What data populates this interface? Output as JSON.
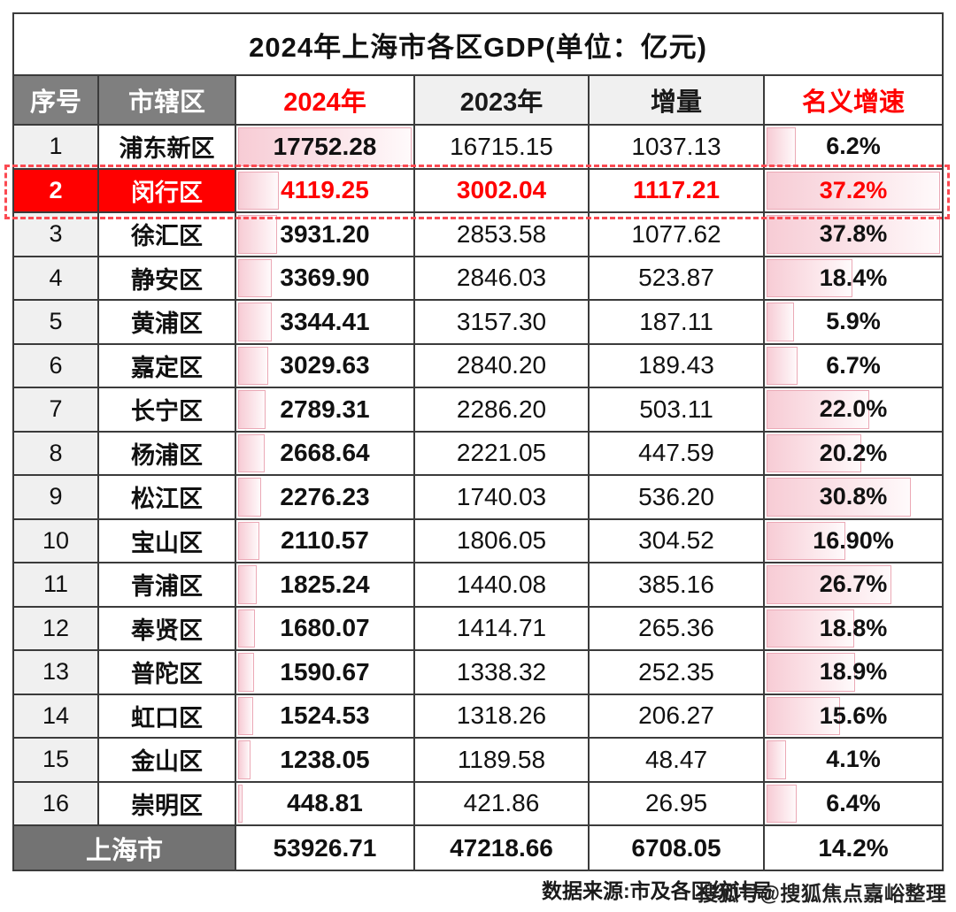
{
  "title": "2024年上海市各区GDP(单位：亿元)",
  "table": {
    "headers": [
      "序号",
      "市辖区",
      "2024年",
      "2023年",
      "增量",
      "名义增速"
    ],
    "rows": [
      {
        "no": "1",
        "district": "浦东新区",
        "gdp2024": "17752.28",
        "gdp2023": "16715.15",
        "delta": "1037.13",
        "growth": "6.2%",
        "highlight": false
      },
      {
        "no": "2",
        "district": "闵行区",
        "gdp2024": "4119.25",
        "gdp2023": "3002.04",
        "delta": "1117.21",
        "growth": "37.2%",
        "highlight": true
      },
      {
        "no": "3",
        "district": "徐汇区",
        "gdp2024": "3931.20",
        "gdp2023": "2853.58",
        "delta": "1077.62",
        "growth": "37.8%",
        "highlight": false
      },
      {
        "no": "4",
        "district": "静安区",
        "gdp2024": "3369.90",
        "gdp2023": "2846.03",
        "delta": "523.87",
        "growth": "18.4%",
        "highlight": false
      },
      {
        "no": "5",
        "district": "黄浦区",
        "gdp2024": "3344.41",
        "gdp2023": "3157.30",
        "delta": "187.11",
        "growth": "5.9%",
        "highlight": false
      },
      {
        "no": "6",
        "district": "嘉定区",
        "gdp2024": "3029.63",
        "gdp2023": "2840.20",
        "delta": "189.43",
        "growth": "6.7%",
        "highlight": false
      },
      {
        "no": "7",
        "district": "长宁区",
        "gdp2024": "2789.31",
        "gdp2023": "2286.20",
        "delta": "503.11",
        "growth": "22.0%",
        "highlight": false
      },
      {
        "no": "8",
        "district": "杨浦区",
        "gdp2024": "2668.64",
        "gdp2023": "2221.05",
        "delta": "447.59",
        "growth": "20.2%",
        "highlight": false
      },
      {
        "no": "9",
        "district": "松江区",
        "gdp2024": "2276.23",
        "gdp2023": "1740.03",
        "delta": "536.20",
        "growth": "30.8%",
        "highlight": false
      },
      {
        "no": "10",
        "district": "宝山区",
        "gdp2024": "2110.57",
        "gdp2023": "1806.05",
        "delta": "304.52",
        "growth": "16.90%",
        "highlight": false
      },
      {
        "no": "11",
        "district": "青浦区",
        "gdp2024": "1825.24",
        "gdp2023": "1440.08",
        "delta": "385.16",
        "growth": "26.7%",
        "highlight": false
      },
      {
        "no": "12",
        "district": "奉贤区",
        "gdp2024": "1680.07",
        "gdp2023": "1414.71",
        "delta": "265.36",
        "growth": "18.8%",
        "highlight": false
      },
      {
        "no": "13",
        "district": "普陀区",
        "gdp2024": "1590.67",
        "gdp2023": "1338.32",
        "delta": "252.35",
        "growth": "18.9%",
        "highlight": false
      },
      {
        "no": "14",
        "district": "虹口区",
        "gdp2024": "1524.53",
        "gdp2023": "1318.26",
        "delta": "206.27",
        "growth": "15.6%",
        "highlight": false
      },
      {
        "no": "15",
        "district": "金山区",
        "gdp2024": "1238.05",
        "gdp2023": "1189.58",
        "delta": "48.47",
        "growth": "4.1%",
        "highlight": false
      },
      {
        "no": "16",
        "district": "崇明区",
        "gdp2024": "448.81",
        "gdp2023": "421.86",
        "delta": "26.95",
        "growth": "6.4%",
        "highlight": false
      }
    ],
    "footer": {
      "label": "上海市",
      "gdp2024": "53926.71",
      "gdp2023": "47218.66",
      "delta": "6708.05",
      "growth": "14.2%"
    }
  },
  "caption": {
    "source": "数据来源:市及各区统计局",
    "watermark": "搜狐号@搜狐焦点嘉峪整理"
  },
  "colors": {
    "accent_red": "#ff0000",
    "header_gray": "#7f7f7f",
    "footer_gray": "#737373",
    "rank_column_gray": "#f0f0f0",
    "bar_fill": "#f7ccd5",
    "bar_border": "#eba9b6",
    "dashed_highlight": "#fb4a52",
    "grid_border": "#3b3b3b"
  },
  "chart_data": {
    "type": "table",
    "title": "2024年上海市各区GDP(单位：亿元)",
    "columns": [
      "序号",
      "市辖区",
      "2024年",
      "2023年",
      "增量",
      "名义增速"
    ],
    "categories": [
      "浦东新区",
      "闵行区",
      "徐汇区",
      "静安区",
      "黄浦区",
      "嘉定区",
      "长宁区",
      "杨浦区",
      "松江区",
      "宝山区",
      "青浦区",
      "奉贤区",
      "普陀区",
      "虹口区",
      "金山区",
      "崇明区"
    ],
    "series": [
      {
        "name": "2024年",
        "values": [
          17752.28,
          4119.25,
          3931.2,
          3369.9,
          3344.41,
          3029.63,
          2789.31,
          2668.64,
          2276.23,
          2110.57,
          1825.24,
          1680.07,
          1590.67,
          1524.53,
          1238.05,
          448.81
        ]
      },
      {
        "name": "2023年",
        "values": [
          16715.15,
          3002.04,
          2853.58,
          2846.03,
          3157.3,
          2840.2,
          2286.2,
          2221.05,
          1740.03,
          1806.05,
          1440.08,
          1414.71,
          1338.32,
          1318.26,
          1189.58,
          421.86
        ]
      },
      {
        "name": "增量",
        "values": [
          1037.13,
          1117.21,
          1077.62,
          523.87,
          187.11,
          189.43,
          503.11,
          447.59,
          536.2,
          304.52,
          385.16,
          265.36,
          252.35,
          206.27,
          48.47,
          26.95
        ]
      },
      {
        "name": "名义增速%",
        "values": [
          6.2,
          37.2,
          37.8,
          18.4,
          5.9,
          6.7,
          22.0,
          20.2,
          30.8,
          16.9,
          26.7,
          18.8,
          18.9,
          15.6,
          4.1,
          6.4
        ]
      }
    ],
    "totals": {
      "name": "上海市",
      "gdp2024": 53926.71,
      "gdp2023": 47218.66,
      "delta": 6708.05,
      "growth_pct": 14.2
    },
    "highlighted_row": "闵行区",
    "databar_max": {
      "gdp2024": 17752.28,
      "growth_pct": 37.8
    },
    "legend_position": "none",
    "grid": true
  },
  "bars": {
    "gdp_max": 17752.28,
    "growth_max": 37.8
  }
}
